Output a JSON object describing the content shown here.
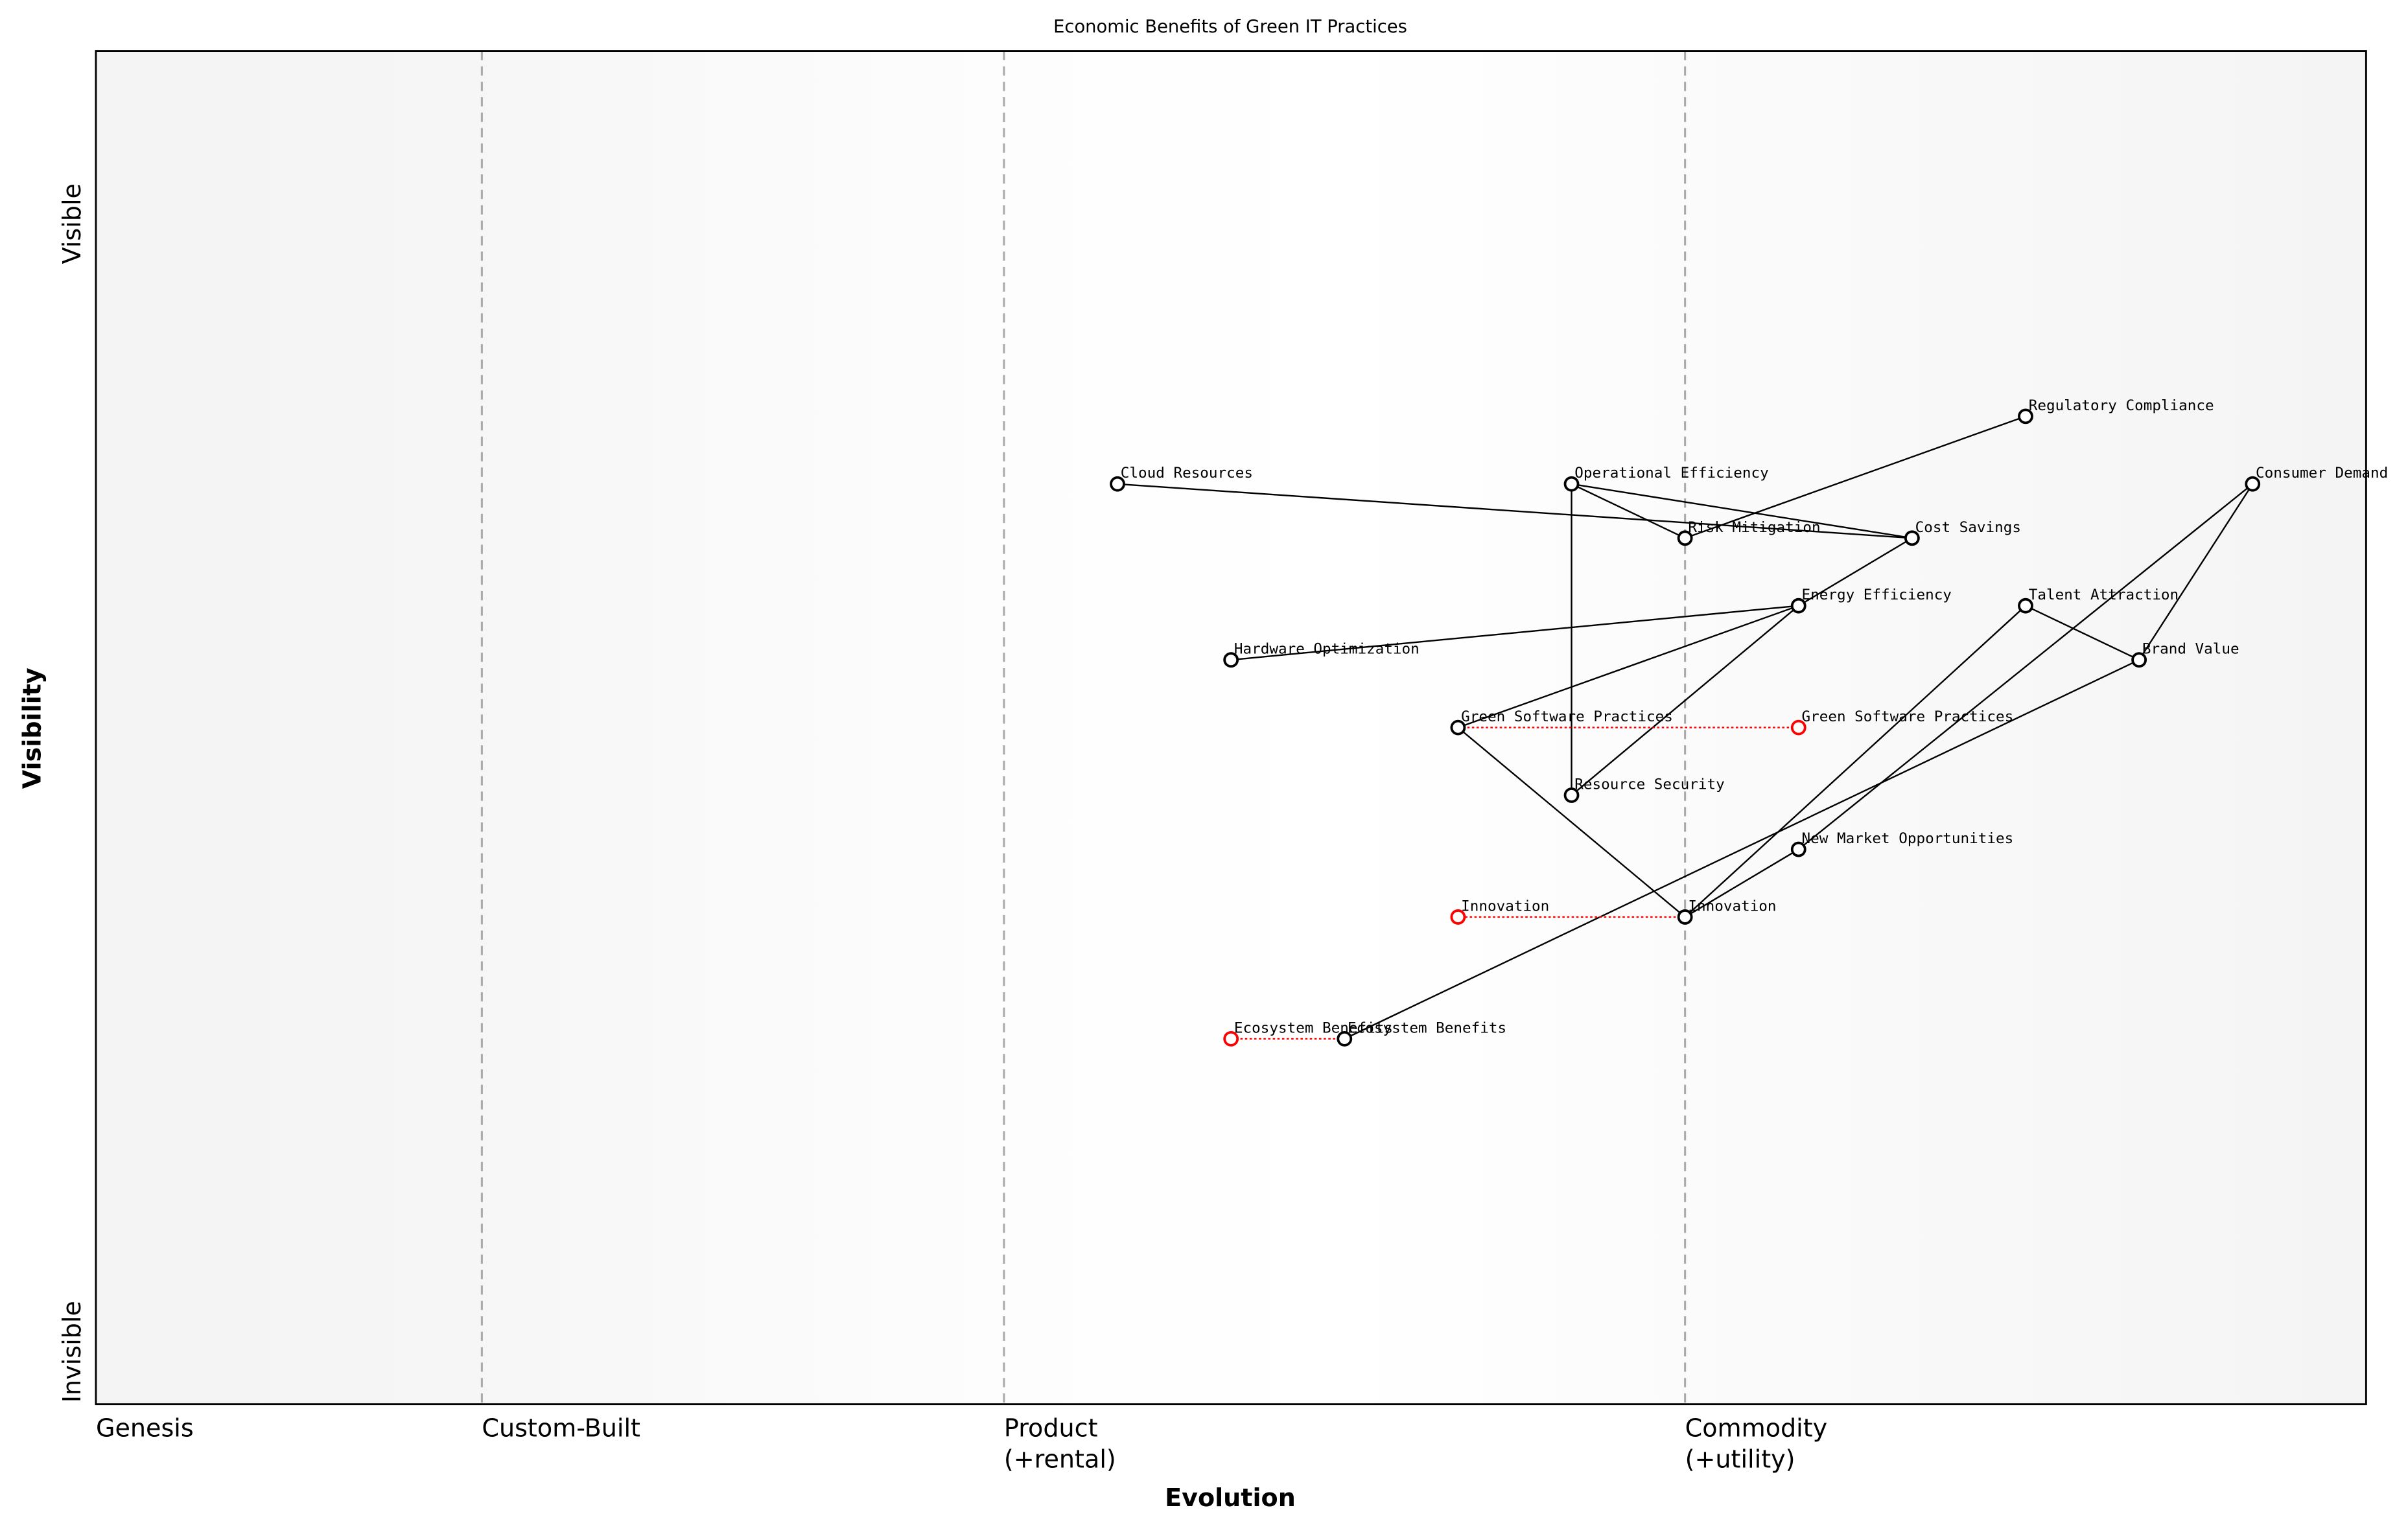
{
  "chart_data": {
    "type": "scatter",
    "title": "Economic Benefits of Green IT Practices",
    "xlabel": "Evolution",
    "ylabel": "Visibility",
    "xlim": [
      0,
      1
    ],
    "ylim": [
      0,
      1
    ],
    "y_tick_labels": {
      "low": "Invisible",
      "high": "Visible"
    },
    "stages": [
      {
        "label": "Genesis",
        "x": 0.0
      },
      {
        "label": "Custom-Built",
        "x": 0.17
      },
      {
        "label": "Product\n(+rental)",
        "x": 0.4
      },
      {
        "label": "Commodity\n(+utility)",
        "x": 0.7
      }
    ],
    "colors": {
      "component": "#000000",
      "evolved": "#ff0000",
      "stage_line": "#aaaaaa"
    },
    "components": [
      {
        "name": "Cloud Resources",
        "x": 0.45,
        "y": 0.68
      },
      {
        "name": "Operational Efficiency",
        "x": 0.65,
        "y": 0.68
      },
      {
        "name": "Regulatory Compliance",
        "x": 0.85,
        "y": 0.73
      },
      {
        "name": "Consumer Demand",
        "x": 0.95,
        "y": 0.68
      },
      {
        "name": "Risk Mitigation",
        "x": 0.7,
        "y": 0.64
      },
      {
        "name": "Cost Savings",
        "x": 0.8,
        "y": 0.64
      },
      {
        "name": "Energy Efficiency",
        "x": 0.75,
        "y": 0.59
      },
      {
        "name": "Talent Attraction",
        "x": 0.85,
        "y": 0.59
      },
      {
        "name": "Hardware Optimization",
        "x": 0.5,
        "y": 0.55
      },
      {
        "name": "Brand Value",
        "x": 0.9,
        "y": 0.55
      },
      {
        "name": "Green Software Practices",
        "x": 0.6,
        "y": 0.5
      },
      {
        "name": "Resource Security",
        "x": 0.65,
        "y": 0.45
      },
      {
        "name": "New Market Opportunities",
        "x": 0.75,
        "y": 0.41
      },
      {
        "name": "Innovation",
        "x": 0.7,
        "y": 0.36
      },
      {
        "name": "Ecosystem Benefits",
        "x": 0.55,
        "y": 0.27
      }
    ],
    "evolved": [
      {
        "name": "Green Software Practices",
        "from_x": 0.6,
        "x": 0.75,
        "y": 0.5
      },
      {
        "name": "Innovation",
        "from_x": 0.7,
        "x": 0.6,
        "y": 0.36
      },
      {
        "name": "Ecosystem Benefits",
        "from_x": 0.55,
        "x": 0.5,
        "y": 0.27
      }
    ],
    "links": [
      [
        "Cloud Resources",
        "Cost Savings"
      ],
      [
        "Operational Efficiency",
        "Cost Savings"
      ],
      [
        "Operational Efficiency",
        "Risk Mitigation"
      ],
      [
        "Operational Efficiency",
        "Resource Security"
      ],
      [
        "Risk Mitigation",
        "Regulatory Compliance"
      ],
      [
        "Cost Savings",
        "Energy Efficiency"
      ],
      [
        "Energy Efficiency",
        "Hardware Optimization"
      ],
      [
        "Energy Efficiency",
        "Green Software Practices"
      ],
      [
        "Energy Efficiency",
        "Resource Security"
      ],
      [
        "Green Software Practices",
        "Innovation"
      ],
      [
        "Innovation",
        "Talent Attraction"
      ],
      [
        "Innovation",
        "New Market Opportunities"
      ],
      [
        "New Market Opportunities",
        "Consumer Demand"
      ],
      [
        "Consumer Demand",
        "Brand Value"
      ],
      [
        "Talent Attraction",
        "Brand Value"
      ],
      [
        "Brand Value",
        "Ecosystem Benefits"
      ]
    ]
  }
}
